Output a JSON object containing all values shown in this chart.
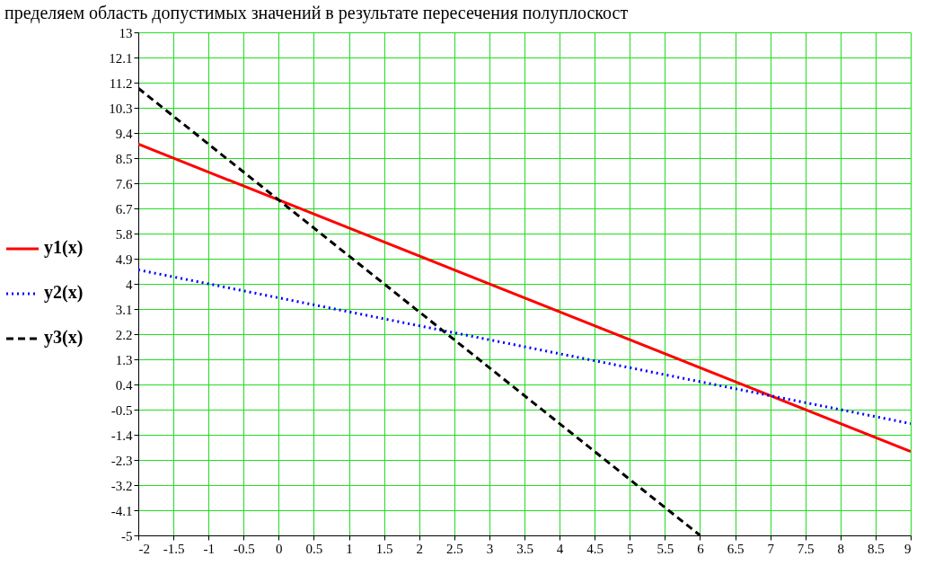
{
  "chart_data": {
    "type": "line",
    "annotations": [
      "пределяем область допустимых значений в результате пересечения полуплоскост"
    ],
    "xlim": [
      -2,
      9
    ],
    "xticks": [
      -2,
      -1.5,
      -1,
      -0.5,
      0,
      0.5,
      1,
      1.5,
      2,
      2.5,
      3,
      3.5,
      4,
      4.5,
      5,
      5.5,
      6,
      6.5,
      7,
      7.5,
      8,
      8.5,
      9
    ],
    "ylim": [
      -5,
      13
    ],
    "yticks": [
      -5,
      -4.1,
      -3.2,
      -2.3,
      -1.4,
      -0.5,
      0.4,
      1.3,
      2.2,
      3.1,
      4,
      4.9,
      5.8,
      6.7,
      7.6,
      8.5,
      9.4,
      10.3,
      11.2,
      12.1,
      13
    ],
    "grid": true,
    "legend": "left",
    "marker": "none",
    "series": [
      {
        "name": "y1(x)",
        "color": "#ff0000",
        "line_style": "solid",
        "x": [
          -2,
          9
        ],
        "values": [
          9,
          -2
        ]
      },
      {
        "name": "y2(x)",
        "color": "#0000ff",
        "line_style": "dotted",
        "x": [
          -2,
          9
        ],
        "values": [
          4.5,
          -1
        ]
      },
      {
        "name": "y3(x)",
        "color": "#000000",
        "line_style": "dashed",
        "x": [
          -2,
          6
        ],
        "values": [
          11,
          -5
        ]
      }
    ]
  }
}
